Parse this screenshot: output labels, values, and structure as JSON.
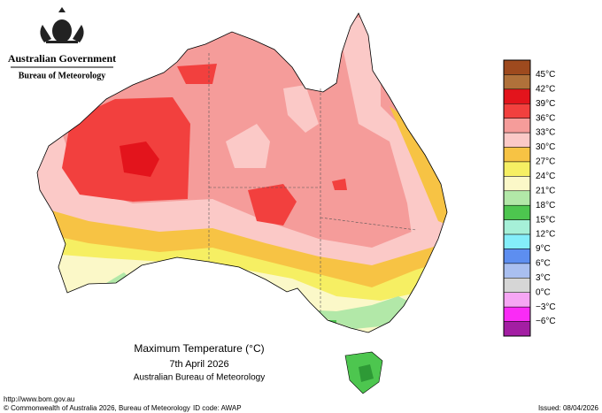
{
  "header": {
    "government": "Australian Government",
    "agency": "Bureau of Meteorology"
  },
  "map": {
    "title": "Maximum Temperature (°C)",
    "date": "7th April 2026",
    "source": "Australian Bureau of Meteorology"
  },
  "legend": {
    "colors": [
      "#9e4a1e",
      "#b0713a",
      "#e3141c",
      "#f2403e",
      "#f59c9a",
      "#fbc9c7",
      "#f7c344",
      "#f6ef63",
      "#fbf8c8",
      "#b2e8a8",
      "#4dc64f",
      "#a6f0d8",
      "#84eefa",
      "#5d8ef0",
      "#a9bff0",
      "#d6d6d6",
      "#f6a6f4",
      "#fa2bf6",
      "#a31ea3"
    ],
    "labels": [
      "45°C",
      "42°C",
      "39°C",
      "36°C",
      "33°C",
      "30°C",
      "27°C",
      "24°C",
      "21°C",
      "18°C",
      "15°C",
      "12°C",
      "9°C",
      "6°C",
      "3°C",
      "0°C",
      "−3°C",
      "−6°C"
    ]
  },
  "footer": {
    "url": "http://www.bom.gov.au",
    "copyright": "© Commonwealth of Australia 2026, Bureau of Meteorology",
    "id_code": "ID code: AWAP",
    "issued": "Issued: 08/04/2026"
  }
}
